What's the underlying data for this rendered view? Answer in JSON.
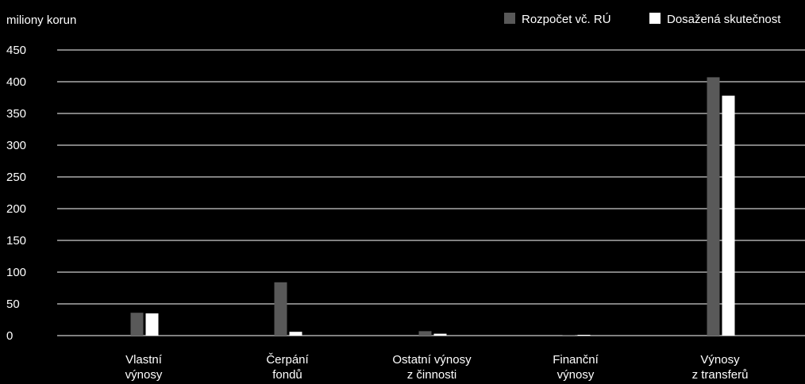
{
  "chart_data": {
    "type": "bar",
    "ylabel": "miliony korun",
    "ylim": [
      0,
      450
    ],
    "yticks": [
      0,
      50,
      100,
      150,
      200,
      250,
      300,
      350,
      400,
      450
    ],
    "grid": true,
    "legend_position": "top-right",
    "categories": [
      [
        "Vlastní",
        "výnosy"
      ],
      [
        "Čerpání",
        "fondů"
      ],
      [
        "Ostatní výnosy",
        "z činnosti"
      ],
      [
        "Finanční",
        "výnosy"
      ],
      [
        "Výnosy",
        "z transferů"
      ]
    ],
    "series": [
      {
        "name": "Rozpočet vč. RÚ",
        "color": "#595959",
        "values": [
          36,
          84,
          7,
          0.5,
          407
        ]
      },
      {
        "name": "Dosažená skutečnost",
        "color": "#ffffff",
        "values": [
          35,
          6,
          3,
          0.5,
          378
        ]
      }
    ]
  },
  "colors": {
    "background": "#000000",
    "grid": "#ffffff",
    "text": "#ffffff"
  }
}
